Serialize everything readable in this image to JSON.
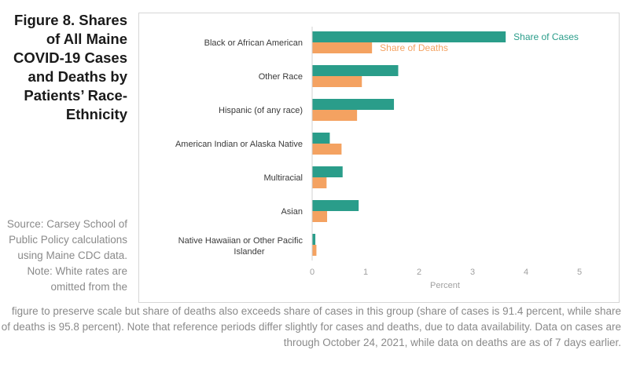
{
  "figure": {
    "title": "Figure 8. Shares of All Maine COVID-19 Cases and Deaths by Patients’ Race-Ethnicity",
    "source": "Source: Carsey School of Public Policy calculations using Maine CDC data.",
    "note_start": "Note: White rates are omitted from the",
    "note_rest": "figure to preserve scale but share of deaths also exceeds share of cases in this group (share of cases is 91.4 percent, while share of deaths is 95.8 percent). Note that reference periods differ slightly for cases and deaths, due to data availability. Data on cases are through October 24, 2021, while data on deaths are as of 7 days earlier."
  },
  "chart_data": {
    "type": "bar",
    "orientation": "horizontal",
    "categories": [
      "Black or African American",
      "Other Race",
      "Hispanic (of any race)",
      "American Indian or Alaska Native",
      "Multiracial",
      "Asian",
      "Native Hawaiian or Other Pacific Islander"
    ],
    "series": [
      {
        "name": "Share of Cases",
        "color": "#2a9d8a",
        "values": [
          3.62,
          1.61,
          1.53,
          0.33,
          0.57,
          0.87,
          0.06
        ]
      },
      {
        "name": "Share of Deaths",
        "color": "#f4a261",
        "values": [
          1.12,
          0.93,
          0.84,
          0.55,
          0.27,
          0.28,
          0.08
        ]
      }
    ],
    "xlabel": "Percent",
    "xlim": [
      0,
      5
    ],
    "xticks": [
      "0",
      "1",
      "2",
      "3",
      "4",
      "5"
    ],
    "grid": false,
    "legend": "inline-right-of-first-bar"
  }
}
